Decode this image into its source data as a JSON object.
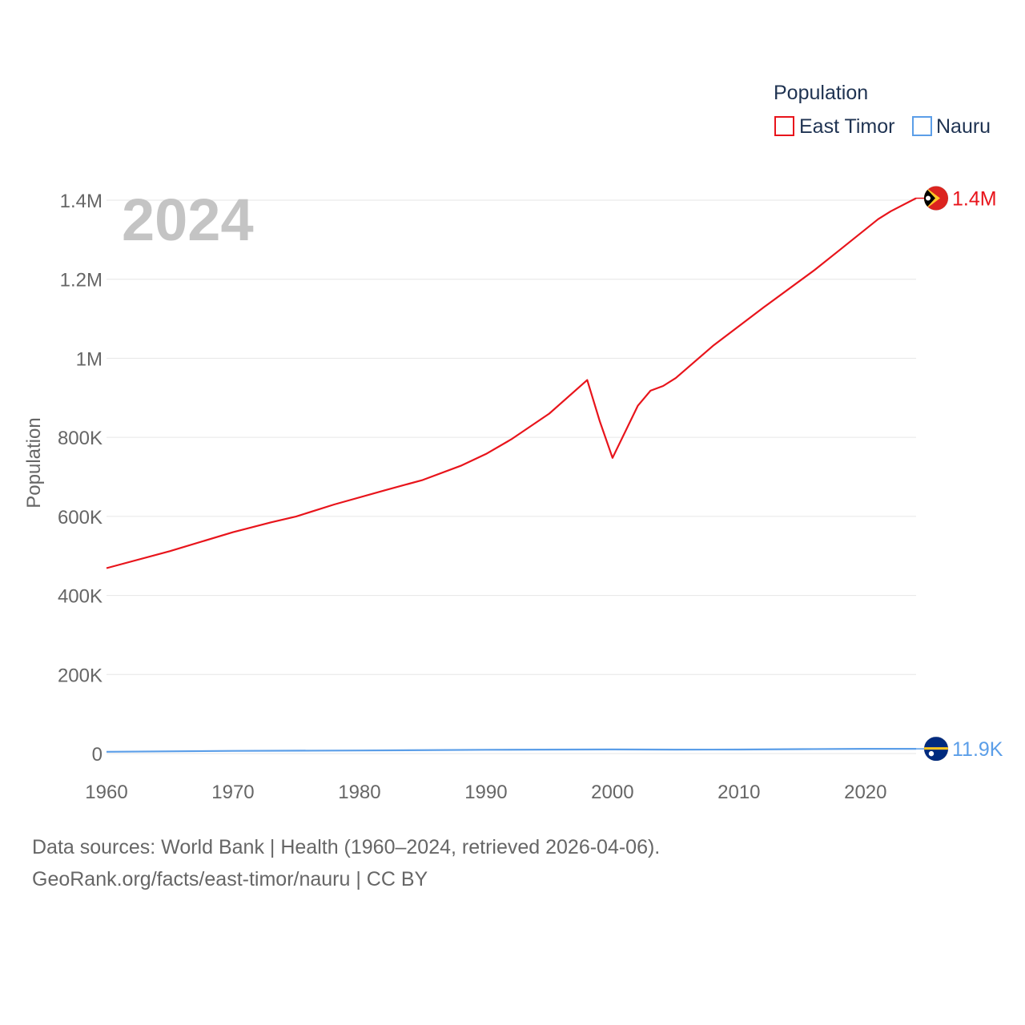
{
  "chart_data": {
    "type": "line",
    "title": "Population",
    "year_label": "2024",
    "ylabel": "Population",
    "xlabel": "",
    "xlim": [
      1960,
      2024
    ],
    "ylim": [
      0,
      1400000
    ],
    "x_ticks": [
      1960,
      1970,
      1980,
      1990,
      2000,
      2010,
      2020
    ],
    "x_tick_labels": [
      "1960",
      "1970",
      "1980",
      "1990",
      "2000",
      "2010",
      "2020"
    ],
    "y_ticks": [
      0,
      200000,
      400000,
      600000,
      800000,
      1000000,
      1200000,
      1400000
    ],
    "y_tick_labels": [
      "0",
      "200K",
      "400K",
      "600K",
      "800K",
      "1M",
      "1.2M",
      "1.4M"
    ],
    "legend": {
      "title": "Population",
      "position": "top-right"
    },
    "series": [
      {
        "name": "East Timor",
        "color": "#e8141b",
        "end_label": "1.4M",
        "flag_icon": "east-timor-flag-icon",
        "points": [
          [
            1960,
            469000
          ],
          [
            1965,
            512000
          ],
          [
            1970,
            560000
          ],
          [
            1973,
            585000
          ],
          [
            1975,
            600000
          ],
          [
            1978,
            630000
          ],
          [
            1982,
            666000
          ],
          [
            1985,
            692000
          ],
          [
            1988,
            728000
          ],
          [
            1990,
            758000
          ],
          [
            1992,
            795000
          ],
          [
            1995,
            860000
          ],
          [
            1998,
            945000
          ],
          [
            1999,
            840000
          ],
          [
            2000,
            748000
          ],
          [
            2002,
            880000
          ],
          [
            2003,
            918000
          ],
          [
            2004,
            930000
          ],
          [
            2005,
            950000
          ],
          [
            2008,
            1033000
          ],
          [
            2012,
            1130000
          ],
          [
            2016,
            1224000
          ],
          [
            2018,
            1275000
          ],
          [
            2021,
            1352000
          ],
          [
            2022,
            1372000
          ],
          [
            2024,
            1405000
          ]
        ]
      },
      {
        "name": "Nauru",
        "color": "#5b9ee8",
        "end_label": "11.9K",
        "flag_icon": "nauru-flag-icon",
        "points": [
          [
            1960,
            4500
          ],
          [
            1970,
            6600
          ],
          [
            1980,
            7600
          ],
          [
            1990,
            9600
          ],
          [
            2000,
            10400
          ],
          [
            2005,
            10000
          ],
          [
            2010,
            10200
          ],
          [
            2015,
            11200
          ],
          [
            2020,
            11900
          ],
          [
            2024,
            11900
          ]
        ]
      }
    ]
  },
  "footer": {
    "line1": "Data sources: World Bank | Health (1960–2024, retrieved 2026-04-06).",
    "line2": "GeoRank.org/facts/east-timor/nauru | CC BY"
  }
}
